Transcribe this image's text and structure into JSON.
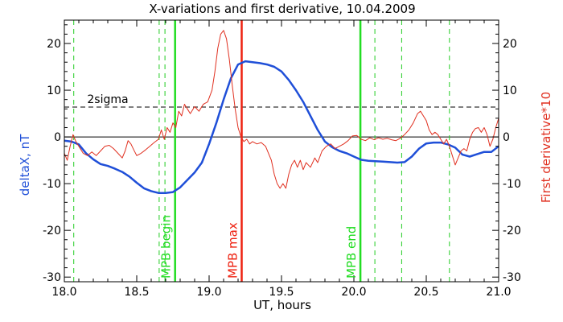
{
  "chart_data": {
    "type": "line",
    "title": "X-variations and first derivative, 10.04.2009",
    "xlabel": "UT, hours",
    "ylabel_left": "deltaX, nT",
    "ylabel_right": "First derivative*10",
    "xlim": [
      18.0,
      21.0
    ],
    "ylim": [
      -31,
      25
    ],
    "x_ticks": [
      18.0,
      18.5,
      19.0,
      19.5,
      20.0,
      20.5,
      21.0
    ],
    "x_tick_labels": [
      "18.0",
      "18.5",
      "19.0",
      "19.5",
      "20.0",
      "20.5",
      "21.0"
    ],
    "y_ticks": [
      20,
      10,
      0,
      -10,
      -20,
      -30
    ],
    "y_tick_labels": [
      "20",
      "10",
      "0",
      "-10",
      "-20",
      "-30"
    ],
    "y_ticks_right": [
      20,
      10,
      0,
      -10,
      -20,
      -30
    ],
    "y_tick_labels_right": [
      "20",
      "10",
      "0",
      "-10",
      "-20",
      "-30"
    ],
    "colors": {
      "deltaX": "#1f4fd8",
      "derivative": "#e03020",
      "mpb": "#22dd22",
      "mpb_max": "#ee2211",
      "green_dashed": "#22cc22",
      "zero_line": "#000000",
      "sigma_line": "#000000"
    },
    "horizontal_lines": [
      {
        "kind": "zero",
        "y": 0,
        "style": "solid"
      },
      {
        "kind": "sigma",
        "y": 6.4,
        "style": "dashed",
        "label": "2sigma"
      }
    ],
    "vertical_markers": [
      {
        "x": 18.065,
        "style": "dashed",
        "color_key": "green_dashed",
        "label": ""
      },
      {
        "x": 18.655,
        "style": "dashed",
        "color_key": "green_dashed",
        "label": ""
      },
      {
        "x": 18.695,
        "style": "dashed",
        "color_key": "green_dashed",
        "label": ""
      },
      {
        "x": 18.765,
        "style": "solid",
        "color_key": "mpb",
        "label": "MPB begin"
      },
      {
        "x": 19.225,
        "style": "solid",
        "color_key": "mpb_max",
        "label": "MPB max"
      },
      {
        "x": 20.045,
        "style": "solid",
        "color_key": "mpb",
        "label": "MPB end"
      },
      {
        "x": 20.145,
        "style": "dashed",
        "color_key": "green_dashed",
        "label": ""
      },
      {
        "x": 20.33,
        "style": "dashed",
        "color_key": "green_dashed",
        "label": ""
      },
      {
        "x": 20.66,
        "style": "dashed",
        "color_key": "green_dashed",
        "label": ""
      }
    ],
    "series": [
      {
        "name": "deltaX, nT",
        "color_key": "deltaX",
        "points": [
          [
            18.0,
            -0.8
          ],
          [
            18.05,
            -1.0
          ],
          [
            18.1,
            -1.6
          ],
          [
            18.15,
            -3.5
          ],
          [
            18.2,
            -4.8
          ],
          [
            18.25,
            -5.8
          ],
          [
            18.3,
            -6.2
          ],
          [
            18.35,
            -6.8
          ],
          [
            18.4,
            -7.5
          ],
          [
            18.45,
            -8.5
          ],
          [
            18.5,
            -9.8
          ],
          [
            18.55,
            -11.0
          ],
          [
            18.6,
            -11.6
          ],
          [
            18.65,
            -12.0
          ],
          [
            18.7,
            -12.0
          ],
          [
            18.75,
            -11.8
          ],
          [
            18.8,
            -10.8
          ],
          [
            18.85,
            -9.2
          ],
          [
            18.9,
            -7.6
          ],
          [
            18.95,
            -5.5
          ],
          [
            19.0,
            -1.5
          ],
          [
            19.05,
            3.0
          ],
          [
            19.1,
            8.0
          ],
          [
            19.15,
            12.5
          ],
          [
            19.2,
            15.5
          ],
          [
            19.25,
            16.2
          ],
          [
            19.3,
            16.0
          ],
          [
            19.35,
            15.8
          ],
          [
            19.4,
            15.5
          ],
          [
            19.45,
            15.0
          ],
          [
            19.5,
            14.0
          ],
          [
            19.55,
            12.2
          ],
          [
            19.6,
            10.0
          ],
          [
            19.65,
            7.5
          ],
          [
            19.7,
            4.5
          ],
          [
            19.75,
            1.5
          ],
          [
            19.8,
            -1.0
          ],
          [
            19.85,
            -2.2
          ],
          [
            19.9,
            -3.0
          ],
          [
            19.95,
            -3.5
          ],
          [
            20.0,
            -4.2
          ],
          [
            20.05,
            -4.9
          ],
          [
            20.1,
            -5.1
          ],
          [
            20.15,
            -5.2
          ],
          [
            20.2,
            -5.3
          ],
          [
            20.25,
            -5.4
          ],
          [
            20.3,
            -5.5
          ],
          [
            20.35,
            -5.4
          ],
          [
            20.4,
            -4.2
          ],
          [
            20.45,
            -2.5
          ],
          [
            20.5,
            -1.4
          ],
          [
            20.55,
            -1.2
          ],
          [
            20.6,
            -1.2
          ],
          [
            20.65,
            -1.6
          ],
          [
            20.7,
            -2.3
          ],
          [
            20.75,
            -3.8
          ],
          [
            20.8,
            -4.2
          ],
          [
            20.85,
            -3.7
          ],
          [
            20.9,
            -3.2
          ],
          [
            20.95,
            -3.2
          ],
          [
            21.0,
            -2.0
          ]
        ]
      },
      {
        "name": "First derivative*10",
        "color_key": "derivative",
        "points": [
          [
            18.0,
            -3.5
          ],
          [
            18.02,
            -5.0
          ],
          [
            18.04,
            -2.0
          ],
          [
            18.06,
            0.5
          ],
          [
            18.08,
            -1.0
          ],
          [
            18.1,
            -2.0
          ],
          [
            18.13,
            -3.5
          ],
          [
            18.16,
            -4.0
          ],
          [
            18.19,
            -3.2
          ],
          [
            18.22,
            -4.0
          ],
          [
            18.25,
            -3.0
          ],
          [
            18.28,
            -2.0
          ],
          [
            18.31,
            -1.8
          ],
          [
            18.34,
            -2.5
          ],
          [
            18.37,
            -3.5
          ],
          [
            18.4,
            -4.5
          ],
          [
            18.42,
            -3.0
          ],
          [
            18.44,
            -0.8
          ],
          [
            18.46,
            -1.5
          ],
          [
            18.48,
            -2.8
          ],
          [
            18.5,
            -4.0
          ],
          [
            18.53,
            -3.5
          ],
          [
            18.56,
            -2.8
          ],
          [
            18.59,
            -2.0
          ],
          [
            18.62,
            -1.2
          ],
          [
            18.65,
            -0.5
          ],
          [
            18.67,
            1.5
          ],
          [
            18.69,
            -0.5
          ],
          [
            18.71,
            2.0
          ],
          [
            18.73,
            1.0
          ],
          [
            18.75,
            3.0
          ],
          [
            18.77,
            2.0
          ],
          [
            18.79,
            5.5
          ],
          [
            18.81,
            4.5
          ],
          [
            18.83,
            7.0
          ],
          [
            18.85,
            6.0
          ],
          [
            18.87,
            5.0
          ],
          [
            18.9,
            6.5
          ],
          [
            18.93,
            5.5
          ],
          [
            18.96,
            7.0
          ],
          [
            18.99,
            7.5
          ],
          [
            19.02,
            10.0
          ],
          [
            19.04,
            14.0
          ],
          [
            19.06,
            19.0
          ],
          [
            19.08,
            22.0
          ],
          [
            19.1,
            22.8
          ],
          [
            19.12,
            21.0
          ],
          [
            19.14,
            16.5
          ],
          [
            19.16,
            11.0
          ],
          [
            19.18,
            6.0
          ],
          [
            19.2,
            2.0
          ],
          [
            19.22,
            0.0
          ],
          [
            19.24,
            -1.0
          ],
          [
            19.26,
            -0.5
          ],
          [
            19.28,
            -1.5
          ],
          [
            19.3,
            -1.0
          ],
          [
            19.33,
            -1.5
          ],
          [
            19.36,
            -1.2
          ],
          [
            19.39,
            -2.0
          ],
          [
            19.41,
            -3.5
          ],
          [
            19.43,
            -5.0
          ],
          [
            19.45,
            -8.0
          ],
          [
            19.47,
            -10.0
          ],
          [
            19.49,
            -11.0
          ],
          [
            19.51,
            -10.0
          ],
          [
            19.53,
            -11.0
          ],
          [
            19.55,
            -8.0
          ],
          [
            19.57,
            -6.0
          ],
          [
            19.59,
            -5.0
          ],
          [
            19.61,
            -6.5
          ],
          [
            19.63,
            -5.0
          ],
          [
            19.65,
            -7.0
          ],
          [
            19.67,
            -5.5
          ],
          [
            19.7,
            -6.5
          ],
          [
            19.73,
            -4.5
          ],
          [
            19.75,
            -5.5
          ],
          [
            19.78,
            -3.0
          ],
          [
            19.81,
            -2.0
          ],
          [
            19.84,
            -1.5
          ],
          [
            19.87,
            -2.5
          ],
          [
            19.9,
            -2.0
          ],
          [
            19.93,
            -1.5
          ],
          [
            19.96,
            -0.8
          ],
          [
            19.99,
            0.2
          ],
          [
            20.02,
            0.3
          ],
          [
            20.05,
            -0.5
          ],
          [
            20.08,
            -0.8
          ],
          [
            20.11,
            -0.2
          ],
          [
            20.14,
            -0.6
          ],
          [
            20.17,
            -0.2
          ],
          [
            20.2,
            -0.5
          ],
          [
            20.23,
            -0.3
          ],
          [
            20.26,
            -0.6
          ],
          [
            20.29,
            -0.8
          ],
          [
            20.32,
            -0.3
          ],
          [
            20.35,
            0.5
          ],
          [
            20.38,
            1.5
          ],
          [
            20.41,
            3.0
          ],
          [
            20.44,
            5.0
          ],
          [
            20.46,
            5.5
          ],
          [
            20.48,
            4.5
          ],
          [
            20.5,
            3.5
          ],
          [
            20.52,
            1.5
          ],
          [
            20.54,
            0.5
          ],
          [
            20.56,
            1.0
          ],
          [
            20.58,
            0.5
          ],
          [
            20.6,
            -0.5
          ],
          [
            20.62,
            -1.5
          ],
          [
            20.64,
            -0.5
          ],
          [
            20.66,
            -2.0
          ],
          [
            20.68,
            -4.0
          ],
          [
            20.7,
            -6.0
          ],
          [
            20.72,
            -4.5
          ],
          [
            20.74,
            -3.0
          ],
          [
            20.76,
            -2.5
          ],
          [
            20.78,
            -3.0
          ],
          [
            20.8,
            -0.5
          ],
          [
            20.82,
            1.0
          ],
          [
            20.84,
            1.8
          ],
          [
            20.86,
            2.0
          ],
          [
            20.88,
            1.0
          ],
          [
            20.9,
            2.0
          ],
          [
            20.92,
            0.5
          ],
          [
            20.94,
            -2.0
          ],
          [
            20.96,
            -0.5
          ],
          [
            20.98,
            2.0
          ],
          [
            21.0,
            4.0
          ]
        ]
      }
    ]
  }
}
